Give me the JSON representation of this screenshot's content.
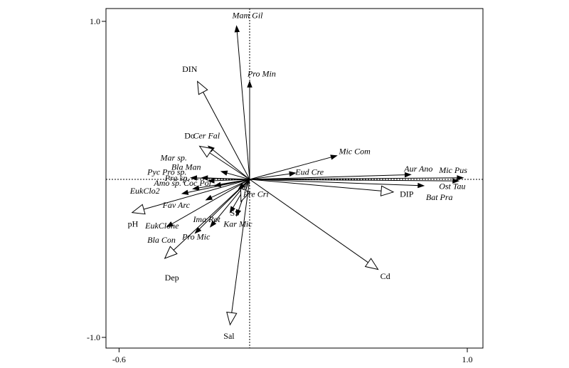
{
  "chart_data": {
    "type": "biplot",
    "xlim": [
      -0.6,
      1.0
    ],
    "ylim": [
      -1.0,
      1.0
    ],
    "x_ticks": [
      {
        "value": -0.6,
        "label": "-0.6"
      },
      {
        "value": 1.0,
        "label": "1.0"
      }
    ],
    "y_ticks": [
      {
        "value": 1.0,
        "label": "1.0"
      },
      {
        "value": -1.0,
        "label": "-1.0"
      }
    ],
    "species": [
      {
        "label": "Mam Gil",
        "x": -0.06,
        "y": 0.97
      },
      {
        "label": "Pro Min",
        "x": 0.0,
        "y": 0.62
      },
      {
        "label": "Cer Fal",
        "x": -0.19,
        "y": 0.21
      },
      {
        "label": "Mic Com",
        "x": 0.4,
        "y": 0.15
      },
      {
        "label": "Bla Man",
        "x": -0.13,
        "y": 0.05
      },
      {
        "label": "Pyc",
        "x": -0.27,
        "y": 0.01
      },
      {
        "label": "Pro sp.",
        "x": -0.22,
        "y": 0.01
      },
      {
        "label": "Pra sp.",
        "x": -0.19,
        "y": -0.01
      },
      {
        "label": "Amo sp.",
        "x": -0.26,
        "y": -0.06
      },
      {
        "label": "Coc Pol",
        "x": -0.16,
        "y": -0.04
      },
      {
        "label": "EukClo2",
        "x": -0.31,
        "y": -0.09
      },
      {
        "label": "Fav Arc",
        "x": -0.2,
        "y": -0.13
      },
      {
        "label": "Pre Cri",
        "x": -0.05,
        "y": -0.06
      },
      {
        "label": "Ima Rot",
        "x": -0.09,
        "y": -0.21
      },
      {
        "label": "Kar Mic",
        "x": -0.06,
        "y": -0.23
      },
      {
        "label": "EukClone",
        "x": -0.38,
        "y": -0.3
      },
      {
        "label": "Pro Mic",
        "x": -0.18,
        "y": -0.3
      },
      {
        "label": "Bla Con",
        "x": -0.25,
        "y": -0.34
      },
      {
        "label": "Eud Cre",
        "x": 0.21,
        "y": 0.04
      },
      {
        "label": "Aur Ano",
        "x": 0.74,
        "y": 0.03
      },
      {
        "label": "Mic Pus",
        "x": 0.98,
        "y": 0.01
      },
      {
        "label": "Ost Tau",
        "x": 0.96,
        "y": -0.01
      },
      {
        "label": "Bat Pra",
        "x": 0.8,
        "y": -0.04
      }
    ],
    "env_vars": [
      {
        "label": "DIN",
        "x": -0.24,
        "y": 0.62
      },
      {
        "label": "Do",
        "x": -0.23,
        "y": 0.21
      },
      {
        "label": "pH",
        "x": -0.54,
        "y": -0.21
      },
      {
        "label": "Dep",
        "x": -0.39,
        "y": -0.5
      },
      {
        "label": "SS",
        "x": -0.04,
        "y": -0.14
      },
      {
        "label": "Sal",
        "x": -0.09,
        "y": -0.92
      },
      {
        "label": "Cd",
        "x": 0.59,
        "y": -0.57
      },
      {
        "label": "DIP",
        "x": 0.66,
        "y": -0.08
      }
    ],
    "name_labels": [
      {
        "text": "Mam Gil",
        "x": -0.08,
        "y": 1.02,
        "style": "italic"
      },
      {
        "text": "Pro Min",
        "x": -0.01,
        "y": 0.65,
        "style": "italic"
      },
      {
        "text": "DIN",
        "x": -0.31,
        "y": 0.68,
        "style": "normal"
      },
      {
        "text": "Do",
        "x": -0.3,
        "y": 0.26,
        "style": "normal"
      },
      {
        "text": "Cer Fal",
        "x": -0.26,
        "y": 0.26,
        "style": "italic"
      },
      {
        "text": "Mic Com",
        "x": 0.41,
        "y": 0.16,
        "style": "italic"
      },
      {
        "text": "Mar sp.",
        "x": -0.41,
        "y": 0.12,
        "style": "italic"
      },
      {
        "text": "Bla Man",
        "x": -0.36,
        "y": 0.06,
        "style": "italic"
      },
      {
        "text": "Pyc Pro sp.",
        "x": -0.47,
        "y": 0.03,
        "style": "italic"
      },
      {
        "text": "Pra sp.",
        "x": -0.39,
        "y": -0.01,
        "style": "italic"
      },
      {
        "text": "Amo sp. Coc Pol",
        "x": -0.44,
        "y": -0.04,
        "style": "italic"
      },
      {
        "text": "EukClo2",
        "x": -0.55,
        "y": -0.09,
        "style": "italic"
      },
      {
        "text": "Eud Cre",
        "x": 0.21,
        "y": 0.03,
        "style": "italic"
      },
      {
        "text": "Aur Ano",
        "x": 0.71,
        "y": 0.05,
        "style": "italic"
      },
      {
        "text": "Mic Pus",
        "x": 0.87,
        "y": 0.04,
        "style": "italic"
      },
      {
        "text": "Ost Tau",
        "x": 0.87,
        "y": -0.06,
        "style": "italic"
      },
      {
        "text": "DIP",
        "x": 0.69,
        "y": -0.11,
        "style": "normal"
      },
      {
        "text": "Bat Pra",
        "x": 0.81,
        "y": -0.13,
        "style": "italic"
      },
      {
        "text": "Pre Cri",
        "x": -0.03,
        "y": -0.11,
        "style": "italic"
      },
      {
        "text": "Fav Arc",
        "x": -0.4,
        "y": -0.18,
        "style": "italic"
      },
      {
        "text": "SS",
        "x": -0.09,
        "y": -0.23,
        "style": "normal"
      },
      {
        "text": "Ima Rot",
        "x": -0.26,
        "y": -0.27,
        "style": "italic"
      },
      {
        "text": "Kar Mic",
        "x": -0.12,
        "y": -0.3,
        "style": "italic"
      },
      {
        "text": "pH",
        "x": -0.56,
        "y": -0.3,
        "style": "normal"
      },
      {
        "text": "EukClone",
        "x": -0.48,
        "y": -0.31,
        "style": "italic"
      },
      {
        "text": "Pro Mic",
        "x": -0.31,
        "y": -0.38,
        "style": "italic"
      },
      {
        "text": "Bla Con",
        "x": -0.47,
        "y": -0.4,
        "style": "italic"
      },
      {
        "text": "Dep",
        "x": -0.39,
        "y": -0.64,
        "style": "normal"
      },
      {
        "text": "Cd",
        "x": 0.6,
        "y": -0.63,
        "style": "normal"
      },
      {
        "text": "Sal",
        "x": -0.12,
        "y": -1.01,
        "style": "normal"
      }
    ],
    "colors": {
      "axis": "#000000",
      "arrow_fill_env": "#ffffff",
      "arrow_fill_species": "#000000",
      "background": "#ffffff"
    },
    "grid": false,
    "legend": "none"
  }
}
